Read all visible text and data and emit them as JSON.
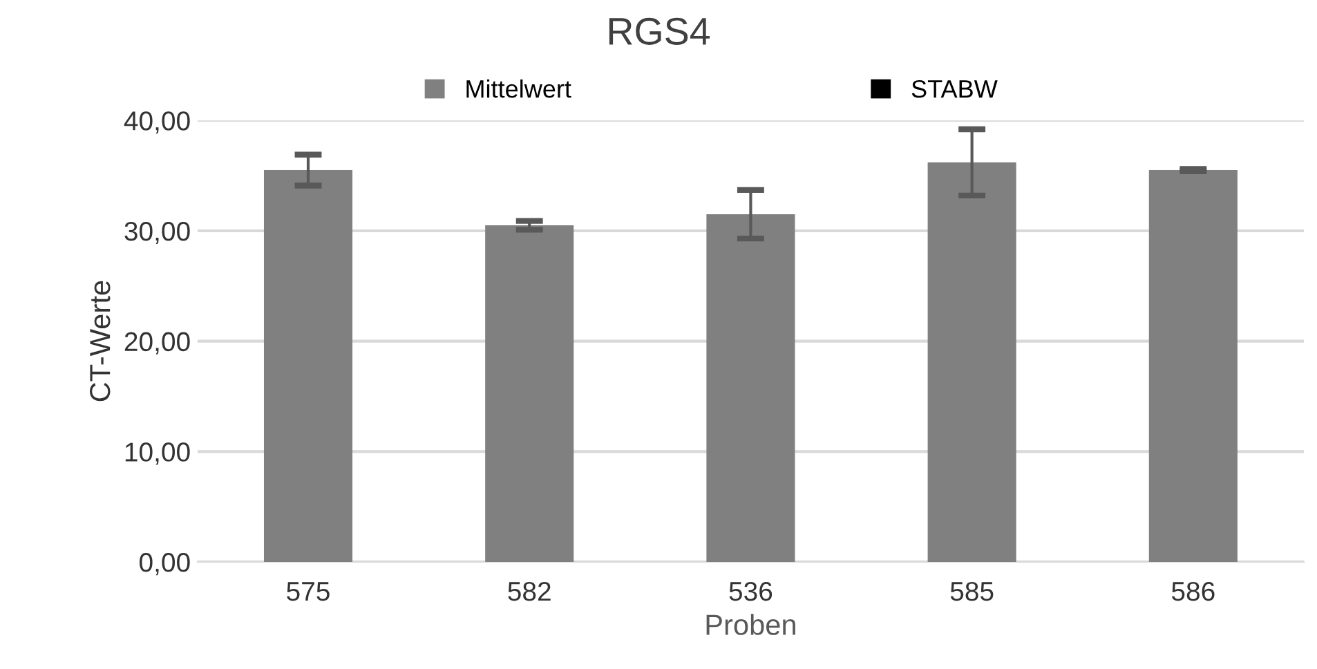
{
  "chart_data": {
    "type": "bar",
    "title": "RGS4",
    "xlabel": "Proben",
    "ylabel": "CT-Werte",
    "categories": [
      "575",
      "582",
      "536",
      "585",
      "586"
    ],
    "series": [
      {
        "name": "Mittelwert",
        "color": "#808080",
        "values": [
          35.5,
          30.5,
          31.5,
          36.2,
          35.5
        ],
        "errors": [
          1.4,
          0.4,
          2.2,
          3.0,
          0.1
        ]
      },
      {
        "name": "STABW",
        "color": "#000000",
        "values": [
          null,
          null,
          null,
          null,
          null
        ]
      }
    ],
    "ylim": [
      0,
      40
    ],
    "yticks": [
      {
        "value": 0,
        "label": "0,00"
      },
      {
        "value": 10,
        "label": "10,00"
      },
      {
        "value": 20,
        "label": "20,00"
      },
      {
        "value": 30,
        "label": "30,00"
      },
      {
        "value": 40,
        "label": "40,00"
      }
    ],
    "grid": "y",
    "legend": "top"
  }
}
